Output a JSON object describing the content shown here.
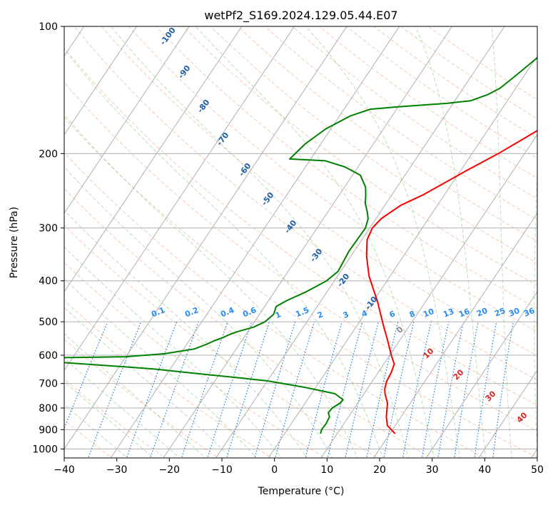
{
  "chart_data": {
    "type": "line",
    "title": "wetPf2_S169.2024.129.05.44.E07",
    "xlabel": "Temperature (°C)",
    "ylabel": "Pressure (hPa)",
    "xlim": [
      -40,
      50
    ],
    "ylim": [
      1050,
      100
    ],
    "y_scale": "log",
    "grid": true,
    "x_ticks": [
      "−40",
      "−30",
      "−20",
      "−10",
      "0",
      "10",
      "20",
      "30",
      "40",
      "50"
    ],
    "x_tick_values": [
      -40,
      -30,
      -20,
      -10,
      0,
      10,
      20,
      30,
      40,
      50
    ],
    "y_ticks": [
      "100",
      "200",
      "300",
      "400",
      "500",
      "600",
      "700",
      "800",
      "900",
      "1000"
    ],
    "y_tick_values": [
      100,
      200,
      300,
      400,
      500,
      600,
      700,
      800,
      900,
      1000
    ],
    "colors": {
      "temperature": "#ff0000",
      "dewpoint": "#008000",
      "isotherm": "#b0b0b0",
      "dry_adiabat": "#f4a582",
      "moist_adiabat": "#8cc98c",
      "mixing_ratio": "#1f77e0",
      "dry_adiabat_label": "#d62728",
      "moist_adiabat_label": "#1f5fa8",
      "mixing_ratio_label": "#2a8ee8"
    },
    "series": [
      {
        "points": [
          [
            21.0,
            920
          ],
          [
            18.5,
            880
          ],
          [
            17.2,
            840
          ],
          [
            16.2,
            800
          ],
          [
            15.7,
            780
          ],
          [
            14.0,
            740
          ],
          [
            13.3,
            720
          ],
          [
            12.7,
            690
          ],
          [
            12.5,
            660
          ],
          [
            12.0,
            630
          ],
          [
            10.3,
            600
          ],
          [
            7.5,
            550
          ],
          [
            5.0,
            510
          ],
          [
            1.0,
            450
          ],
          [
            -4.0,
            390
          ],
          [
            -7.0,
            350
          ],
          [
            -9.0,
            320
          ],
          [
            -9.5,
            300
          ],
          [
            -9.0,
            285
          ],
          [
            -7.0,
            265
          ],
          [
            -4.0,
            250
          ],
          [
            1.0,
            220
          ],
          [
            5.0,
            200
          ],
          [
            9.8,
            175
          ],
          [
            13.5,
            160
          ],
          [
            16.5,
            150
          ],
          [
            18.5,
            140
          ],
          [
            19.0,
            130
          ],
          [
            20.5,
            120
          ],
          [
            24.0,
            110
          ],
          [
            28.5,
            100
          ]
        ]
      },
      {
        "points": [
          [
            6.8,
            920
          ],
          [
            6.5,
            900
          ],
          [
            6.6,
            870
          ],
          [
            6.4,
            840
          ],
          [
            5.6,
            820
          ],
          [
            5.8,
            800
          ],
          [
            6.6,
            780
          ],
          [
            6.8,
            765
          ],
          [
            4.5,
            740
          ],
          [
            -2.0,
            715
          ],
          [
            -10.0,
            690
          ],
          [
            -15.0,
            680
          ],
          [
            -25.0,
            662
          ],
          [
            -33.0,
            647
          ],
          [
            -40.0,
            638
          ],
          [
            -55.0,
            620
          ],
          [
            -60.0,
            610
          ],
          [
            -40.0,
            605
          ],
          [
            -33.0,
            595
          ],
          [
            -28.0,
            580
          ],
          [
            -26.2,
            565
          ],
          [
            -25.3,
            555
          ],
          [
            -24.0,
            545
          ],
          [
            -23.0,
            535
          ],
          [
            -22.0,
            528
          ],
          [
            -19.5,
            515
          ],
          [
            -18.0,
            500
          ],
          [
            -17.3,
            480
          ],
          [
            -17.8,
            460
          ],
          [
            -16.5,
            445
          ],
          [
            -14.0,
            425
          ],
          [
            -12.5,
            410
          ],
          [
            -11.5,
            400
          ],
          [
            -10.5,
            380
          ],
          [
            -11.0,
            340
          ],
          [
            -10.8,
            300
          ],
          [
            -11.5,
            285
          ],
          [
            -12.5,
            275
          ],
          [
            -14.0,
            262
          ],
          [
            -15.0,
            250
          ],
          [
            -16.0,
            240
          ],
          [
            -18.5,
            225
          ],
          [
            -22.5,
            215
          ],
          [
            -27.0,
            208
          ],
          [
            -34.0,
            206
          ],
          [
            -33.0,
            190
          ],
          [
            -31.0,
            175
          ],
          [
            -28.0,
            163
          ],
          [
            -25.0,
            157
          ],
          [
            -20.0,
            155
          ],
          [
            -11.0,
            152
          ],
          [
            -7.0,
            150
          ],
          [
            -4.5,
            145
          ],
          [
            -3.0,
            140
          ],
          [
            -1.5,
            130
          ],
          [
            0.0,
            120
          ],
          [
            2.0,
            110
          ],
          [
            4.0,
            104
          ],
          [
            4.5,
            100
          ]
        ]
      }
    ],
    "moist_adiabat_labels": [
      "-100",
      "-90",
      "-80",
      "-70",
      "-60",
      "-50",
      "-40",
      "-30",
      "-20",
      "-10"
    ],
    "dry_adiabat_labels": [
      "0",
      "10",
      "20",
      "30",
      "40"
    ],
    "mixing_ratio_labels": [
      "0.1",
      "0.2",
      "0.4",
      "0.6",
      "1",
      "1.5",
      "2",
      "3",
      "4",
      "6",
      "8",
      "10",
      "13",
      "16",
      "20",
      "25",
      "30",
      "36"
    ]
  }
}
